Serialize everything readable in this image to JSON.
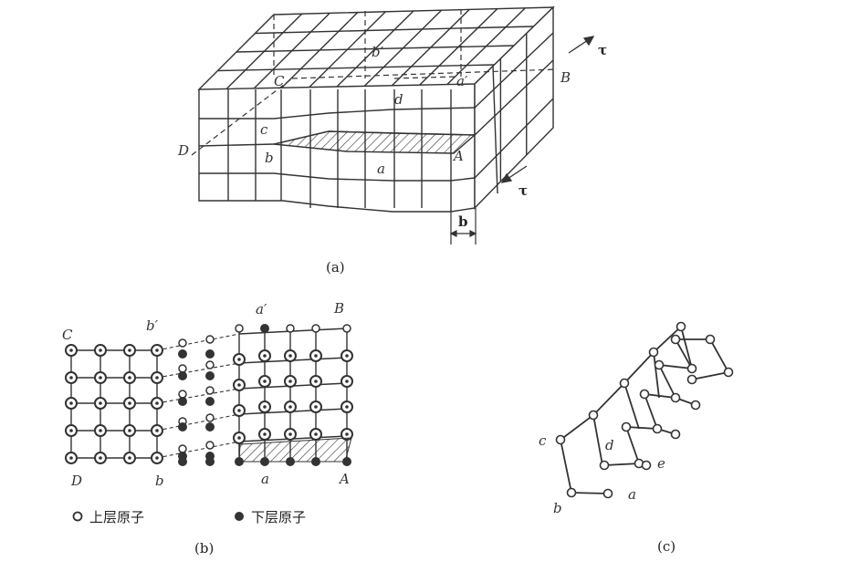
{
  "panel_a": {
    "caption": "(a)",
    "labels": {
      "b_prime": "b′",
      "C": "C",
      "a_prime": "a′",
      "B": "B",
      "d": "d",
      "c": "c",
      "D": "D",
      "b": "b",
      "a": "a",
      "A": "A",
      "burgers": "b"
    },
    "tau_top": "τ",
    "tau_bottom": "τ"
  },
  "panel_b": {
    "caption": "(b)",
    "labels": {
      "C": "C",
      "b_prime": "b′",
      "a_prime": "a′",
      "B": "B",
      "D": "D",
      "b": "b",
      "a": "a",
      "A": "A"
    },
    "legend_upper": "上层原子",
    "legend_lower": "下层原子"
  },
  "panel_c": {
    "caption": "(c)",
    "labels": {
      "c": "c",
      "d": "d",
      "e": "e",
      "b": "b",
      "a": "a"
    }
  }
}
